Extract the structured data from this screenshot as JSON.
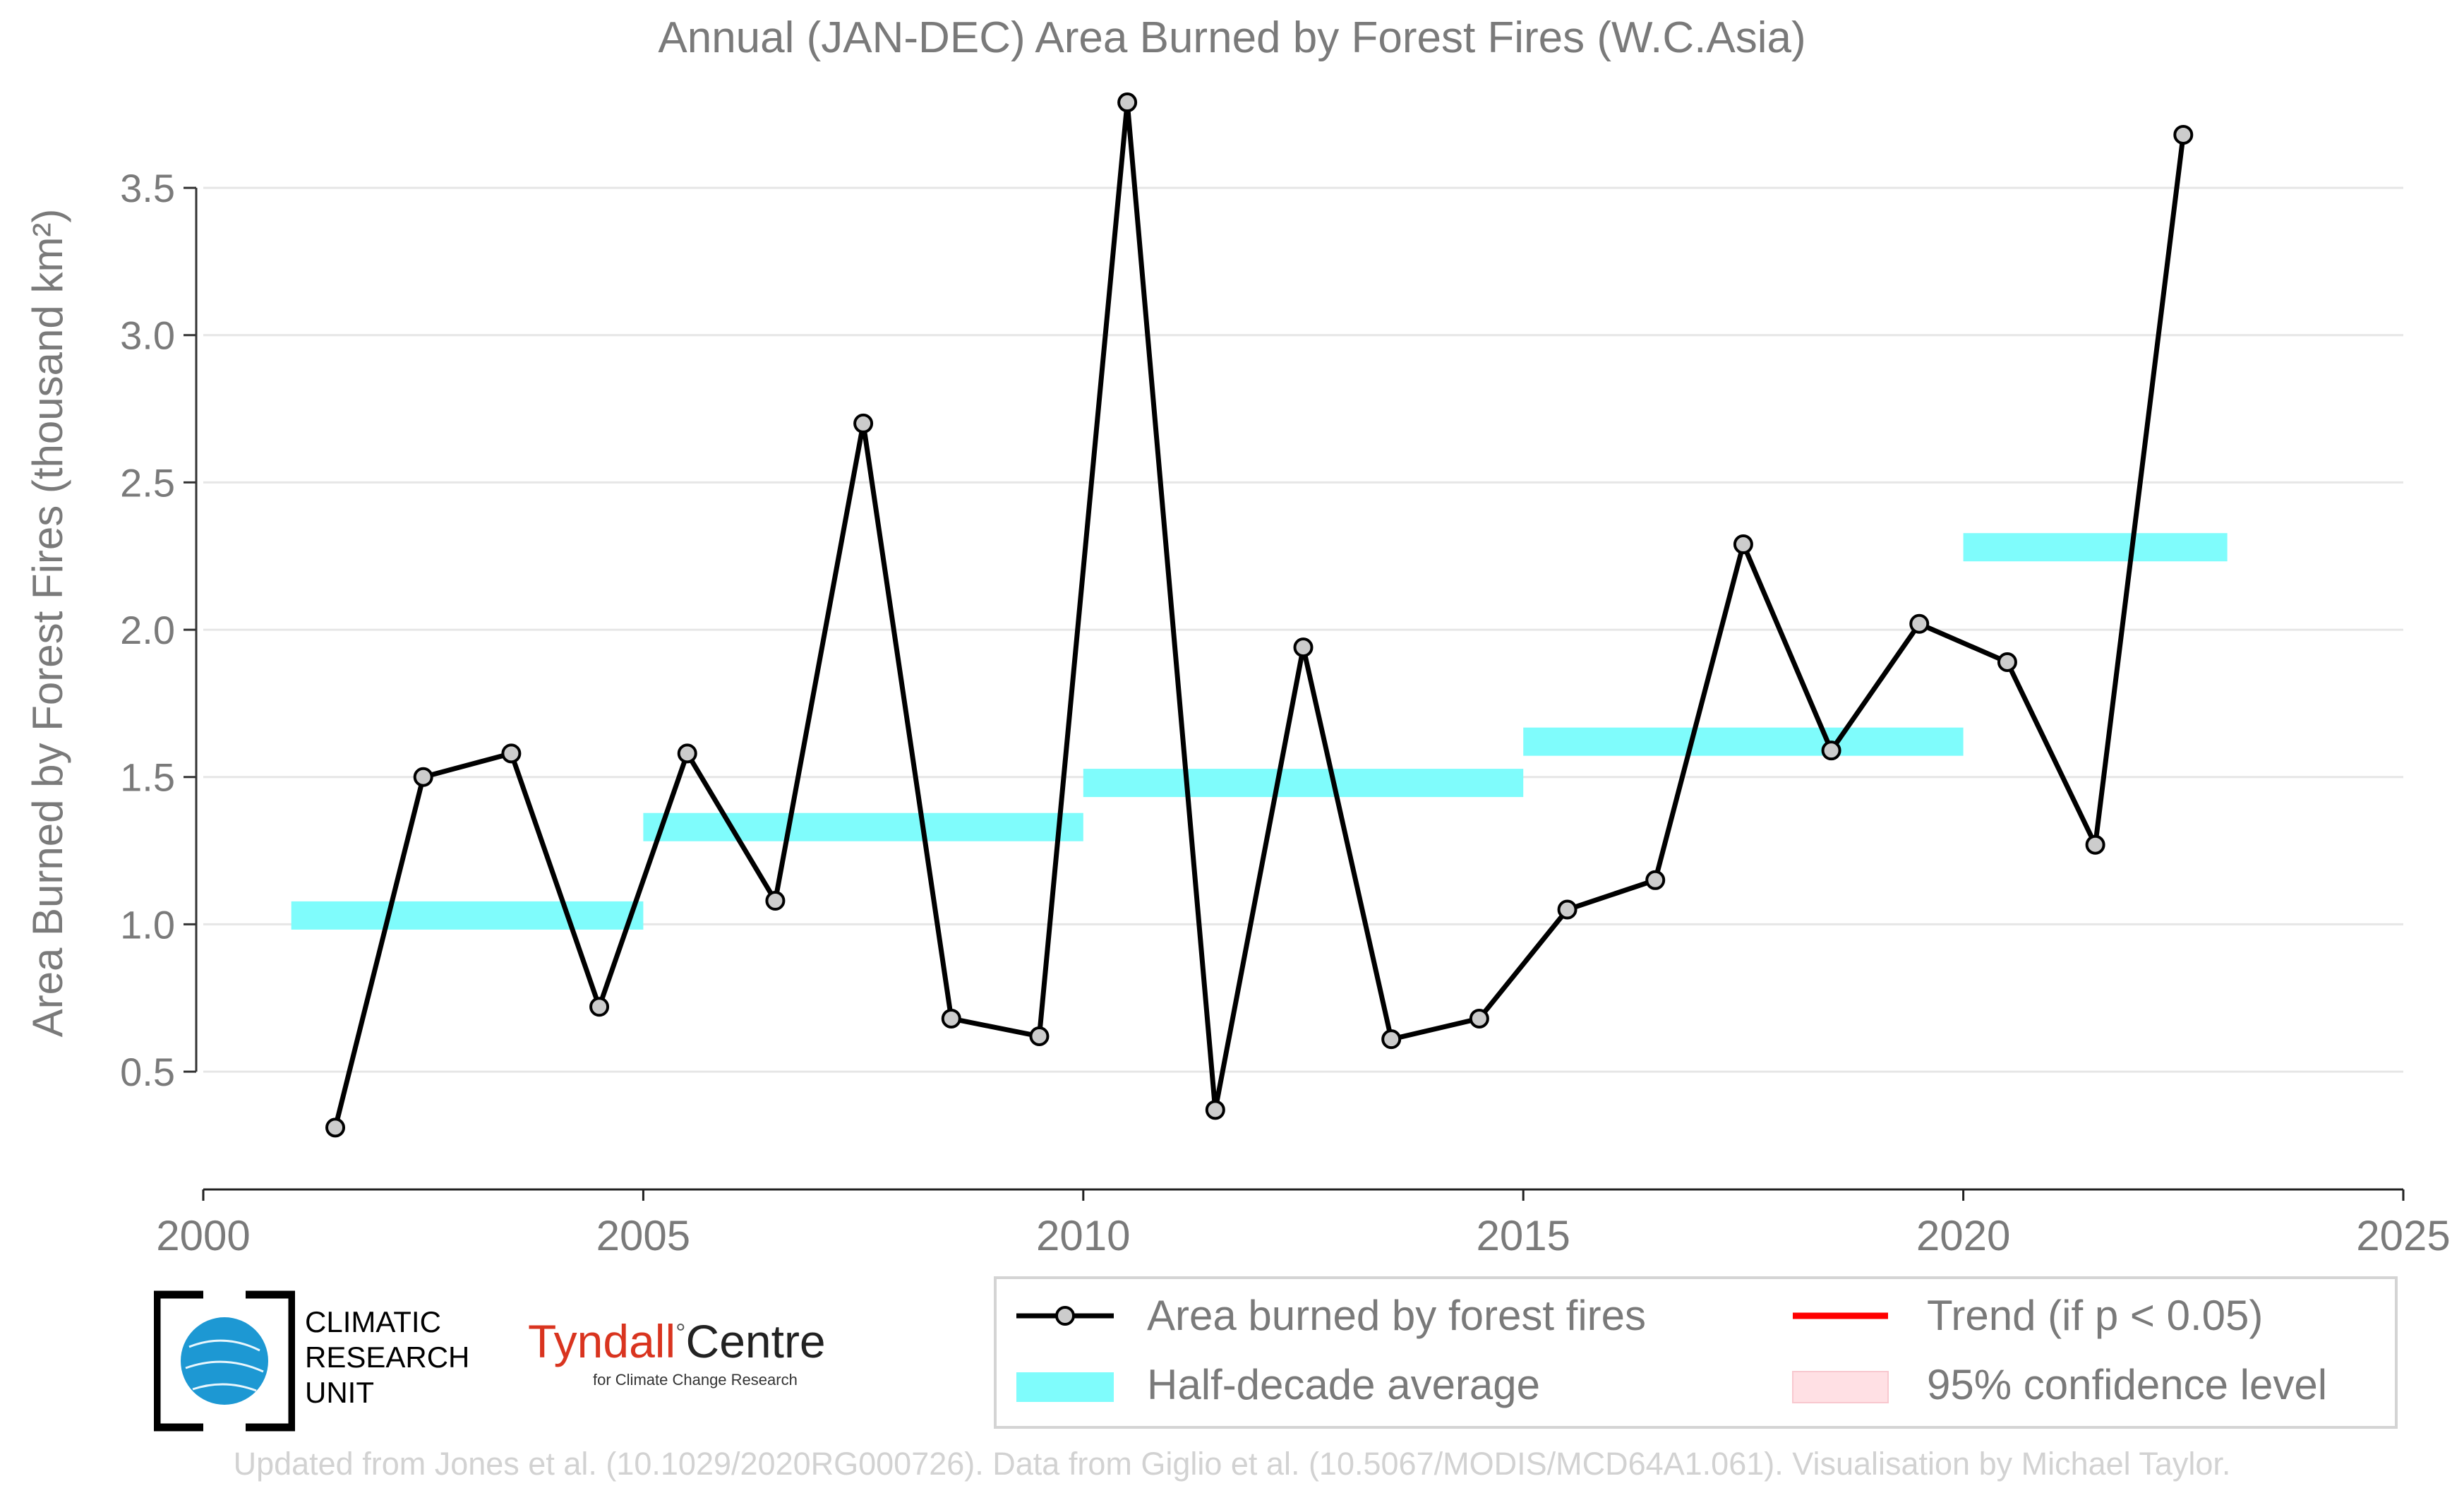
{
  "title": "Annual (JAN-DEC) Area Burned by Forest Fires (W.C.Asia)",
  "footer": "Updated from Jones et al. (10.1029/2020RG000726). Data from Giglio et al. (10.5067/MODIS/MCD64A1.061). Visualisation by Michael Taylor.",
  "logos": {
    "cru": [
      "CLIMATIC",
      "RESEARCH",
      "UNIT"
    ],
    "tyndall_name": "Tyndall",
    "tyndall_degree": "°",
    "tyndall_centre": "Centre",
    "tyndall_sub": "for Climate Change Research"
  },
  "colors": {
    "series": "#000000",
    "marker_fill": "#cccccc",
    "half_decade": "#7ffcfc",
    "trend": "#ff0000",
    "confidence": "#ffe0e4",
    "axis_text": "#7a7a7a",
    "grid": "#e6e6e6"
  },
  "chart_data": {
    "type": "line",
    "title": "Annual (JAN-DEC) Area Burned by Forest Fires (W.C.Asia)",
    "xlabel": "",
    "ylabel": "Area Burned by Forest Fires (thousand km²)",
    "xlim": [
      2000,
      2025
    ],
    "ylim": [
      0.1,
      3.85
    ],
    "xticks": [
      2000,
      2005,
      2010,
      2015,
      2020,
      2025
    ],
    "yticks": [
      0.5,
      1.0,
      1.5,
      2.0,
      2.5,
      3.0,
      3.5
    ],
    "ytick_labels": [
      "0.5",
      "1.0",
      "1.5",
      "2.0",
      "2.5",
      "3.0",
      "3.5"
    ],
    "grid": "horizontal",
    "series": [
      {
        "name": "Area burned by forest fires",
        "x": [
          2001.5,
          2002.5,
          2003.5,
          2004.5,
          2005.5,
          2006.5,
          2007.5,
          2008.5,
          2009.5,
          2010.5,
          2011.5,
          2012.5,
          2013.5,
          2014.5,
          2015.5,
          2016.5,
          2017.5,
          2018.5,
          2019.5,
          2020.5,
          2021.5,
          2022.5
        ],
        "values": [
          0.31,
          1.5,
          1.58,
          0.72,
          1.58,
          1.08,
          2.7,
          0.68,
          0.62,
          3.79,
          0.37,
          1.94,
          0.61,
          0.68,
          1.05,
          1.15,
          2.29,
          1.59,
          2.02,
          1.89,
          1.27,
          3.68
        ]
      }
    ],
    "half_decade_average": {
      "name": "Half-decade average",
      "segments": [
        {
          "x0": 2001,
          "x1": 2005,
          "value": 1.03
        },
        {
          "x0": 2005,
          "x1": 2010,
          "value": 1.33
        },
        {
          "x0": 2010,
          "x1": 2015,
          "value": 1.48
        },
        {
          "x0": 2015,
          "x1": 2020,
          "value": 1.62
        },
        {
          "x0": 2020,
          "x1": 2023,
          "value": 2.28
        }
      ]
    },
    "legend": {
      "position": "bottom-right",
      "entries": [
        {
          "label": "Area burned by forest fires",
          "kind": "line-marker"
        },
        {
          "label": "Trend (if p < 0.05)",
          "kind": "trend-line"
        },
        {
          "label": "Half-decade average",
          "kind": "band"
        },
        {
          "label": "95% confidence level",
          "kind": "confidence-box"
        }
      ]
    }
  }
}
